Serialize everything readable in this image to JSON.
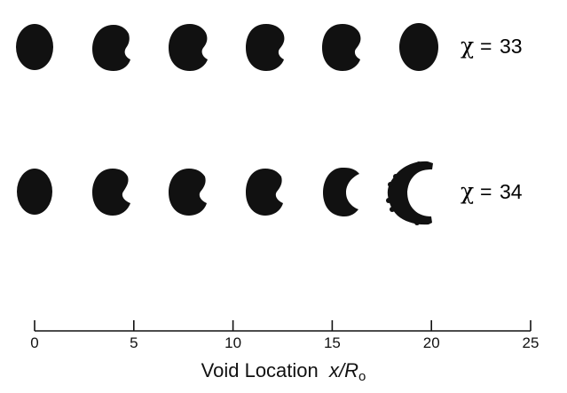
{
  "rows": [
    {
      "symbol": "χ",
      "equals": "=",
      "value": "33"
    },
    {
      "symbol": "χ",
      "equals": "=",
      "value": "34"
    }
  ],
  "axis": {
    "label": "Void Location",
    "var": "x/R",
    "sub": "o",
    "min": 0,
    "max": 25,
    "major_ticks": [
      0,
      5,
      10,
      15,
      20,
      25
    ],
    "tick_labels": [
      "0",
      "5",
      "10",
      "15",
      "20",
      "25"
    ]
  },
  "void_shapes": {
    "color": "#111111",
    "row_33": [
      "ellipse",
      "kidney-slight",
      "kidney",
      "kidney",
      "kidney",
      "oval"
    ],
    "row_34": [
      "ellipse",
      "kidney",
      "kidney",
      "kidney",
      "kidney-deep",
      "crescent"
    ]
  }
}
